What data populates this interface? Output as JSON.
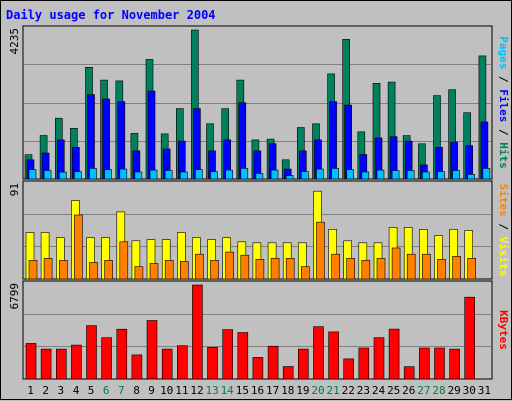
{
  "title": "Daily usage for November 2004",
  "colors": {
    "background": "#c0c0c0",
    "grid": "#808080",
    "hits": "#00805c",
    "files": "#0000ff",
    "pages": "#00c0ff",
    "visits": "#ffff00",
    "sites": "#ff8000",
    "kbytes": "#ff0000",
    "weekend_day": "#007f3f",
    "weekday_day": "#000000"
  },
  "chart_data": [
    {
      "type": "bar",
      "title": "Daily usage for November 2004",
      "ylabel_parts": [
        {
          "text": "Pages",
          "color": "#00c0ff"
        },
        {
          "text": " / ",
          "color": "#000000"
        },
        {
          "text": "Files",
          "color": "#0000ff"
        },
        {
          "text": " / ",
          "color": "#000000"
        },
        {
          "text": "Hits",
          "color": "#00805c"
        }
      ],
      "ymax_label": "4235",
      "ylim": [
        0,
        4235
      ],
      "categories": [
        "1",
        "2",
        "3",
        "4",
        "5",
        "6",
        "7",
        "8",
        "9",
        "10",
        "11",
        "12",
        "13",
        "14",
        "15",
        "16",
        "17",
        "18",
        "19",
        "20",
        "21",
        "22",
        "23",
        "24",
        "25",
        "26",
        "27",
        "28",
        "29",
        "30",
        "31"
      ],
      "series": [
        {
          "name": "Hits",
          "values": [
            692,
            1237,
            1727,
            1441,
            3174,
            2810,
            2787,
            1295,
            3400,
            1282,
            2001,
            4235,
            1569,
            1999,
            2810,
            1111,
            1135,
            547,
            1465,
            1569,
            2987,
            3970,
            1341,
            2720,
            2754,
            1234,
            1000,
            2370,
            2537,
            1884,
            3500
          ]
        },
        {
          "name": "Files",
          "values": [
            547,
            740,
            1111,
            900,
            2400,
            2275,
            2200,
            800,
            2500,
            853,
            1078,
            2000,
            800,
            1111,
            2170,
            800,
            1003,
            282,
            800,
            1111,
            2200,
            2100,
            696,
            1169,
            1202,
            1078,
            400,
            900,
            1050,
            947,
            1620
          ]
        },
        {
          "name": "Pages",
          "values": [
            268,
            241,
            195,
            210,
            300,
            268,
            282,
            200,
            254,
            241,
            200,
            268,
            210,
            254,
            300,
            160,
            254,
            100,
            210,
            282,
            300,
            268,
            200,
            254,
            241,
            241,
            200,
            210,
            241,
            130,
            300
          ]
        }
      ]
    },
    {
      "type": "bar",
      "ylabel_parts": [
        {
          "text": "Sites",
          "color": "#ff8000"
        },
        {
          "text": " / ",
          "color": "#000000"
        },
        {
          "text": "Visits",
          "color": "#ffff00"
        }
      ],
      "ymax_label": "91",
      "ylim": [
        0,
        91
      ],
      "categories": [
        "1",
        "2",
        "3",
        "4",
        "5",
        "6",
        "7",
        "8",
        "9",
        "10",
        "11",
        "12",
        "13",
        "14",
        "15",
        "16",
        "17",
        "18",
        "19",
        "20",
        "21",
        "22",
        "23",
        "24",
        "25",
        "26",
        "27",
        "28",
        "29",
        "30",
        "31"
      ],
      "series": [
        {
          "name": "Visits",
          "values": [
            45,
            45,
            40,
            76,
            40,
            40,
            65,
            37,
            38,
            38,
            45,
            40,
            38,
            40,
            36,
            35,
            35,
            35,
            35,
            85,
            48,
            37,
            35,
            35,
            50,
            50,
            48,
            42,
            48,
            47,
            0
          ]
        },
        {
          "name": "Sites",
          "values": [
            18,
            20,
            18,
            62,
            16,
            18,
            36,
            12,
            15,
            18,
            17,
            24,
            18,
            26,
            23,
            19,
            20,
            20,
            12,
            55,
            24,
            20,
            18,
            20,
            30,
            24,
            24,
            19,
            22,
            20,
            0
          ]
        }
      ]
    },
    {
      "type": "bar",
      "ylabel_parts": [
        {
          "text": "KBytes",
          "color": "#ff0000"
        }
      ],
      "ymax_label": "6799",
      "ylim": [
        0,
        6799
      ],
      "categories": [
        "1",
        "2",
        "3",
        "4",
        "5",
        "6",
        "7",
        "8",
        "9",
        "10",
        "11",
        "12",
        "13",
        "14",
        "15",
        "16",
        "17",
        "18",
        "19",
        "20",
        "21",
        "22",
        "23",
        "24",
        "25",
        "26",
        "27",
        "28",
        "29",
        "30",
        "31"
      ],
      "series": [
        {
          "name": "KBytes",
          "values": [
            2575,
            2160,
            2160,
            2450,
            3860,
            2990,
            3600,
            1744,
            4230,
            2160,
            2410,
            6799,
            2290,
            3570,
            3360,
            1560,
            2370,
            906,
            2160,
            3780,
            3410,
            1454,
            2240,
            2990,
            3610,
            891,
            2240,
            2240,
            2160,
            5920,
            0
          ]
        }
      ]
    }
  ],
  "weekend_days": [
    6,
    7,
    13,
    14,
    20,
    21,
    27,
    28
  ]
}
